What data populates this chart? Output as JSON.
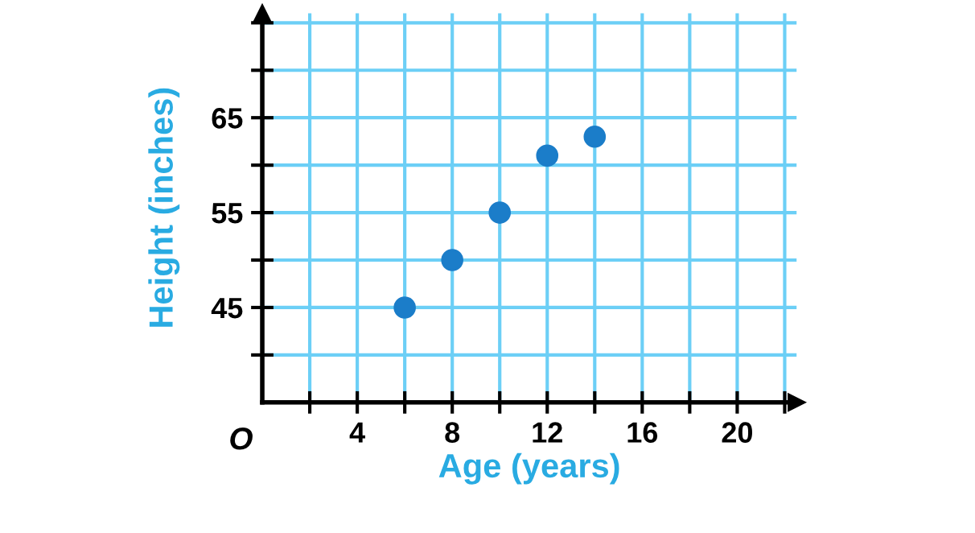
{
  "chart_data": {
    "type": "scatter",
    "xlabel": "Age (years)",
    "ylabel": "Height (inches)",
    "x": [
      6,
      8,
      10,
      12,
      14
    ],
    "series": [
      {
        "color": "#1b7dc9",
        "values": [
          45,
          50,
          55,
          61,
          63
        ]
      }
    ],
    "xlim": [
      0,
      22.5
    ],
    "ylim": [
      35,
      76
    ],
    "xticks": [
      {
        "value": 2,
        "label": null
      },
      4,
      {
        "value": 6,
        "label": null
      },
      8,
      {
        "value": 10,
        "label": null
      },
      12,
      {
        "value": 14,
        "label": null
      },
      16,
      {
        "value": 18,
        "label": null
      },
      20,
      {
        "value": 22,
        "label": null
      }
    ],
    "yticks": [
      {
        "value": 40,
        "label": null
      },
      45,
      {
        "value": 50,
        "label": null
      },
      55,
      {
        "value": 60,
        "label": null
      },
      65,
      {
        "value": 70,
        "label": null
      },
      {
        "value": 75,
        "label": null
      }
    ],
    "grid": true,
    "marker": "circle",
    "legend": false,
    "annotations": [
      "O"
    ]
  }
}
